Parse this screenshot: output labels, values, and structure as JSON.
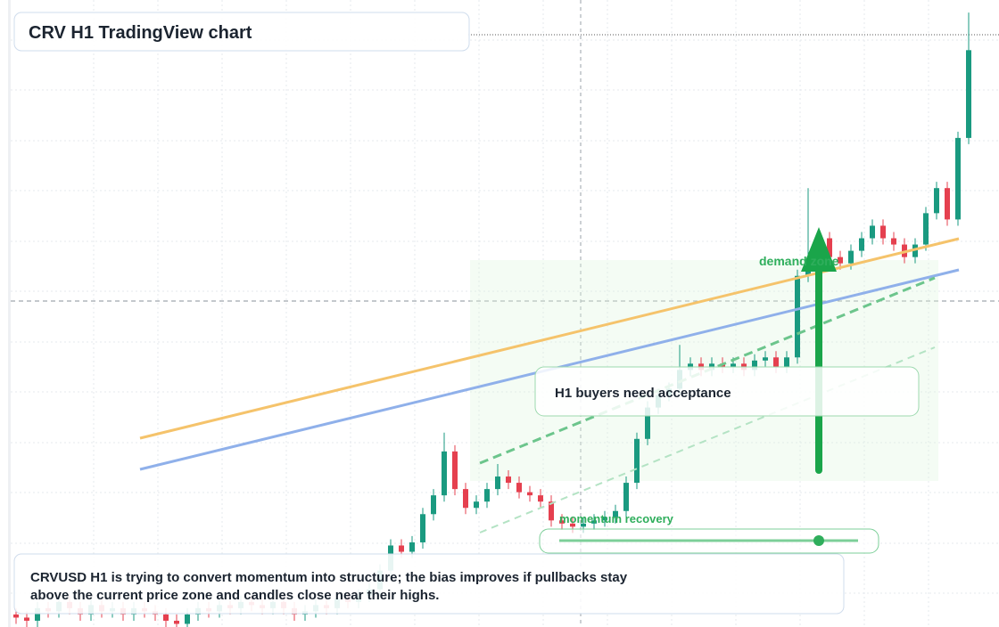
{
  "chart_data": {
    "type": "candlestick",
    "title": "CRV H1 TradingView chart",
    "up_color": "#1a9a80",
    "down_color": "#e5404f",
    "ylim": [
      0,
      100
    ],
    "open": [
      2,
      1.5,
      1,
      3,
      2.5,
      4,
      3,
      2,
      3.5,
      2.5,
      3,
      2,
      3,
      2.5,
      2,
      1,
      0.5,
      2,
      3,
      2.5,
      3.5,
      3,
      4,
      3.5,
      3,
      4,
      3,
      2,
      2.5,
      3.5,
      3,
      4.5,
      4,
      5,
      6,
      9,
      13,
      12,
      13.5,
      18,
      21,
      28,
      22,
      19,
      20,
      22,
      24,
      23,
      21.5,
      21,
      20,
      17,
      16.5,
      16,
      16.5,
      17,
      17.5,
      18.5,
      23,
      30,
      35,
      37,
      38,
      41,
      42,
      41,
      42,
      41.5,
      42,
      41,
      42.5,
      43,
      41.5,
      43,
      56,
      58,
      62,
      59,
      58,
      60,
      62,
      64,
      62,
      61,
      59,
      61,
      66,
      70,
      65,
      78
    ],
    "high": [
      3,
      2.5,
      4,
      4,
      5,
      5,
      4,
      4.5,
      4.5,
      4,
      4,
      4,
      4,
      3.5,
      3,
      2,
      3,
      4,
      4,
      4.5,
      4.5,
      5,
      5,
      4.5,
      5,
      5,
      4,
      3.5,
      4.5,
      4.5,
      5.5,
      5.5,
      6,
      7,
      10,
      14,
      14,
      14.5,
      19,
      22,
      31,
      29,
      23,
      21,
      23,
      26,
      25,
      24,
      22.5,
      22,
      21,
      18,
      17.5,
      17.5,
      18,
      18.5,
      19.5,
      24,
      31,
      36,
      38,
      39,
      45,
      43,
      43,
      43,
      43,
      43,
      43,
      43.5,
      44,
      44,
      44,
      57,
      70,
      63,
      63,
      60,
      61,
      63,
      65,
      65,
      63,
      62,
      62,
      67,
      71,
      71,
      79,
      98
    ],
    "low": [
      0.5,
      0,
      0,
      1.5,
      1.5,
      2,
      1,
      1,
      1.5,
      1.5,
      1,
      1,
      1.5,
      1,
      0,
      0,
      0,
      1,
      1.5,
      1.5,
      2,
      2,
      2.5,
      2,
      2,
      2,
      1,
      1,
      1.5,
      2,
      2,
      3,
      3,
      4,
      5,
      8,
      11,
      11,
      12.5,
      17,
      20,
      21,
      18,
      18,
      19,
      21,
      22,
      20.5,
      20,
      19,
      16,
      15.5,
      15,
      15,
      15.5,
      16,
      16.5,
      17.5,
      22,
      29,
      34,
      36,
      37,
      40,
      40,
      40,
      40.5,
      40.5,
      40,
      40,
      41.5,
      40.5,
      40.5,
      42,
      55,
      57,
      58,
      57,
      57,
      59,
      61,
      61,
      60,
      58,
      58,
      60,
      65,
      64,
      64,
      77
    ],
    "close": [
      1.5,
      1,
      3,
      2.5,
      4,
      3,
      2,
      3.5,
      2.5,
      3,
      2,
      3,
      2.5,
      2,
      1,
      0.5,
      2,
      3,
      2.5,
      3.5,
      3,
      4,
      3.5,
      3,
      4,
      3,
      2,
      2.5,
      3.5,
      3,
      4.5,
      4,
      5,
      6,
      9,
      13,
      12,
      13.5,
      18,
      21,
      28,
      22,
      19,
      20,
      22,
      24,
      23,
      21.5,
      21,
      20,
      17,
      16.5,
      16,
      16.5,
      17,
      17.5,
      18.5,
      23,
      30,
      35,
      37,
      38,
      41,
      42,
      41,
      42,
      41.5,
      42,
      41,
      42.5,
      43,
      41.5,
      43,
      56,
      58,
      62,
      59,
      58,
      60,
      62,
      64,
      62,
      61,
      59,
      61,
      66,
      70,
      65,
      78,
      92
    ],
    "annotations": [
      "demand zone",
      "H1 buyers need acceptance",
      "momentum recovery"
    ],
    "caption": [
      "CRVUSD H1 is trying to convert momentum into structure; the bias improves if pullbacks stay",
      "above the current price zone and candles close near their highs."
    ]
  }
}
